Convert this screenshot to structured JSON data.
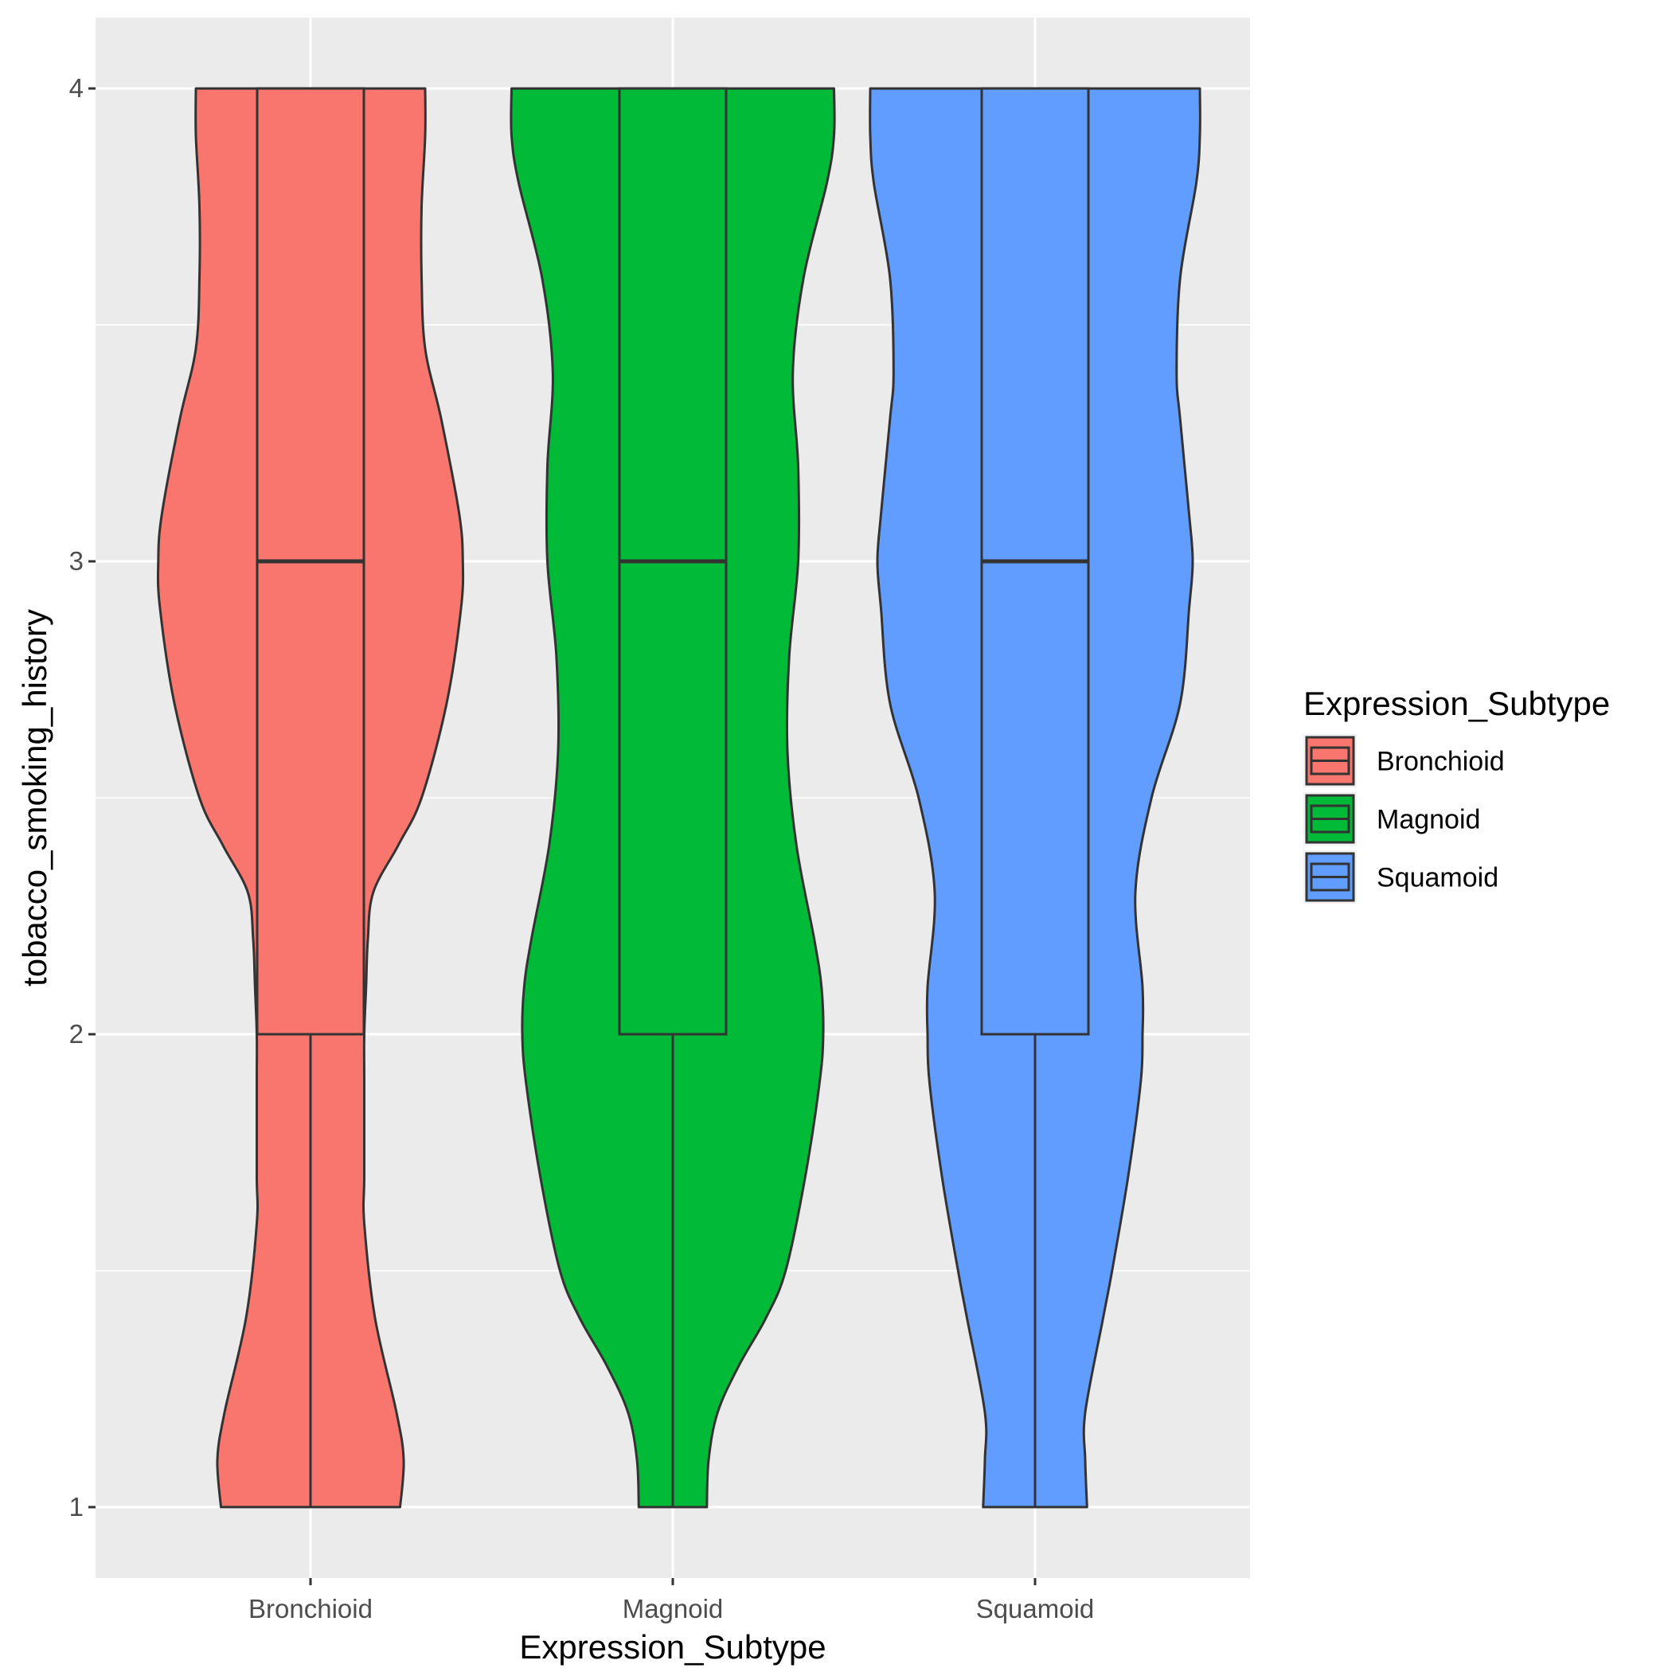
{
  "chart_data": {
    "type": "violin",
    "xlabel": "Expression_Subtype",
    "ylabel": "tobacco_smoking_history",
    "categories": [
      "Bronchioid",
      "Magnoid",
      "Squamoid"
    ],
    "y_ticks": [
      1,
      2,
      3,
      4
    ],
    "y_tick_labels": [
      "1",
      "2",
      "3",
      "4"
    ],
    "ylim": [
      0.85,
      4.15
    ],
    "grid": true,
    "legend": {
      "title": "Expression_Subtype",
      "position": "right",
      "entries": [
        "Bronchioid",
        "Magnoid",
        "Squamoid"
      ]
    },
    "colors": {
      "Bronchioid": "#F8766D",
      "Magnoid": "#00BA38",
      "Squamoid": "#619CFF",
      "panel_bg": "#EBEBEB",
      "grid": "#FFFFFF",
      "outline": "#333333"
    },
    "series": [
      {
        "name": "Bronchioid",
        "box": {
          "min": 1,
          "q1": 2,
          "median": 3,
          "q3": 4,
          "max": 4
        },
        "density": [
          [
            1.0,
            0.5
          ],
          [
            1.1,
            0.52
          ],
          [
            1.2,
            0.48
          ],
          [
            1.4,
            0.36
          ],
          [
            1.6,
            0.3
          ],
          [
            1.7,
            0.3
          ],
          [
            1.9,
            0.3
          ],
          [
            2.0,
            0.3
          ],
          [
            2.1,
            0.31
          ],
          [
            2.2,
            0.32
          ],
          [
            2.3,
            0.35
          ],
          [
            2.4,
            0.49
          ],
          [
            2.5,
            0.62
          ],
          [
            2.7,
            0.76
          ],
          [
            2.9,
            0.84
          ],
          [
            3.0,
            0.85
          ],
          [
            3.1,
            0.83
          ],
          [
            3.3,
            0.73
          ],
          [
            3.45,
            0.64
          ],
          [
            3.6,
            0.62
          ],
          [
            3.75,
            0.62
          ],
          [
            3.9,
            0.64
          ],
          [
            4.0,
            0.64
          ]
        ]
      },
      {
        "name": "Magnoid",
        "box": {
          "min": 1,
          "q1": 2,
          "median": 3,
          "q3": 4,
          "max": 4
        },
        "density": [
          [
            1.0,
            0.19
          ],
          [
            1.1,
            0.2
          ],
          [
            1.2,
            0.25
          ],
          [
            1.3,
            0.37
          ],
          [
            1.4,
            0.52
          ],
          [
            1.5,
            0.63
          ],
          [
            1.7,
            0.74
          ],
          [
            1.9,
            0.82
          ],
          [
            2.0,
            0.84
          ],
          [
            2.1,
            0.83
          ],
          [
            2.2,
            0.79
          ],
          [
            2.4,
            0.69
          ],
          [
            2.6,
            0.64
          ],
          [
            2.8,
            0.65
          ],
          [
            3.0,
            0.7
          ],
          [
            3.2,
            0.7
          ],
          [
            3.4,
            0.67
          ],
          [
            3.6,
            0.73
          ],
          [
            3.8,
            0.86
          ],
          [
            3.9,
            0.9
          ],
          [
            4.0,
            0.9
          ]
        ]
      },
      {
        "name": "Squamoid",
        "box": {
          "min": 1,
          "q1": 2,
          "median": 3,
          "q3": 4,
          "max": 4
        },
        "density": [
          [
            1.0,
            0.29
          ],
          [
            1.1,
            0.28
          ],
          [
            1.2,
            0.28
          ],
          [
            1.4,
            0.38
          ],
          [
            1.5,
            0.43
          ],
          [
            1.7,
            0.52
          ],
          [
            1.9,
            0.59
          ],
          [
            2.0,
            0.6
          ],
          [
            2.1,
            0.6
          ],
          [
            2.3,
            0.56
          ],
          [
            2.5,
            0.65
          ],
          [
            2.7,
            0.81
          ],
          [
            2.9,
            0.86
          ],
          [
            3.0,
            0.88
          ],
          [
            3.1,
            0.86
          ],
          [
            3.3,
            0.81
          ],
          [
            3.4,
            0.79
          ],
          [
            3.6,
            0.81
          ],
          [
            3.8,
            0.9
          ],
          [
            3.9,
            0.92
          ],
          [
            4.0,
            0.92
          ]
        ]
      }
    ]
  }
}
